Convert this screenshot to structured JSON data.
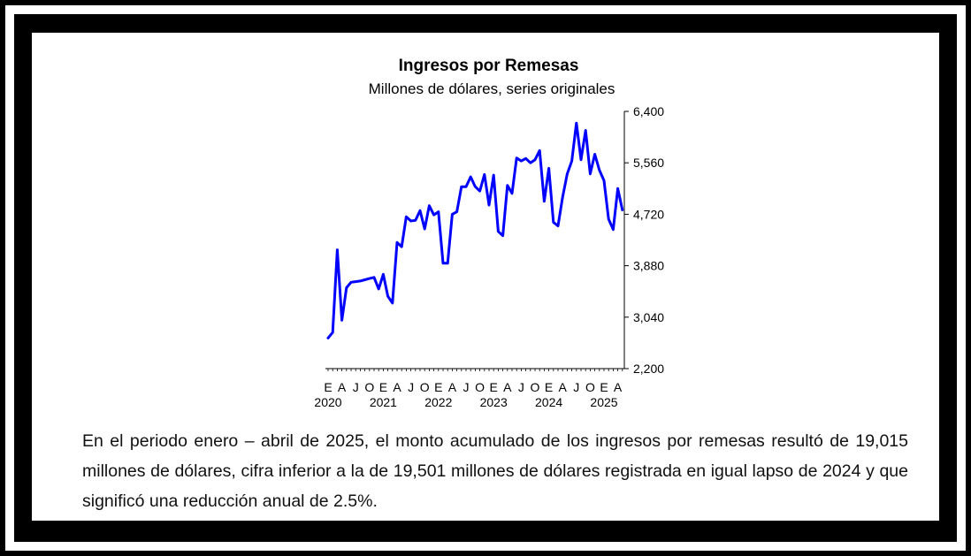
{
  "chart_data": {
    "type": "line",
    "title": "Ingresos por Remesas",
    "subtitle": "Millones de dólares, series originales",
    "xlabel": "",
    "ylabel": "",
    "ylim": [
      2200,
      6400
    ],
    "yticks": [
      "6,400",
      "5,560",
      "4,720",
      "3,880",
      "3,040",
      "2,200"
    ],
    "ytick_values": [
      6400,
      5560,
      4720,
      3880,
      3040,
      2200
    ],
    "xtick_months": [
      "E",
      "A",
      "J",
      "O",
      "E",
      "A",
      "J",
      "O",
      "E",
      "A",
      "J",
      "O",
      "E",
      "A",
      "J",
      "O",
      "E",
      "A",
      "J",
      "O",
      "E",
      "A"
    ],
    "xtick_years": [
      "2020",
      "2021",
      "2022",
      "2023",
      "2024",
      "2025"
    ],
    "series": [
      {
        "name": "Ingresos por Remesas",
        "color": "#0000ff",
        "values": [
          2700,
          2790,
          4140,
          2990,
          3520,
          3610,
          3620,
          3630,
          3650,
          3670,
          3690,
          3500,
          3740,
          3380,
          3270,
          4260,
          4190,
          4680,
          4610,
          4620,
          4780,
          4480,
          4860,
          4710,
          4760,
          3920,
          3920,
          4720,
          4760,
          5170,
          5170,
          5330,
          5170,
          5100,
          5370,
          4870,
          5360,
          4440,
          4370,
          5190,
          5060,
          5640,
          5590,
          5630,
          5560,
          5610,
          5760,
          4930,
          5470,
          4590,
          4530,
          5000,
          5380,
          5590,
          6210,
          5610,
          6090,
          5380,
          5700,
          5440,
          5270,
          4640,
          4470,
          5140,
          4790
        ]
      }
    ]
  },
  "text": {
    "paragraph": "En el periodo enero – abril de 2025, el monto acumulado de los ingresos por remesas resultó de 19,015 millones de dólares, cifra inferior a la de 19,501 millones de dólares registrada en igual lapso de 2024 y que significó una reducción anual de 2.5%."
  }
}
